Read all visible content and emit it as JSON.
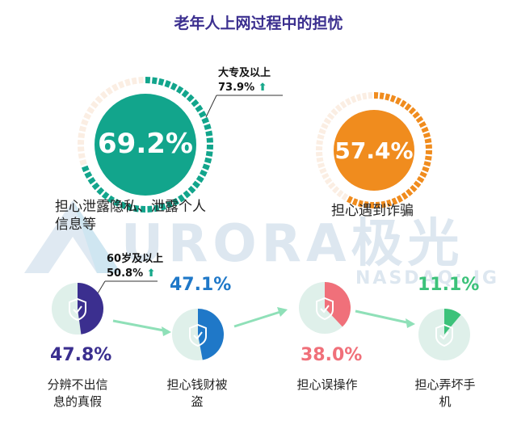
{
  "title": "老年人上网过程中的担忧",
  "watermark": {
    "brand": "URORA极光",
    "exchange": "NASDAQ: JG"
  },
  "colors": {
    "teal": "#12a58c",
    "teal_light": "#e8f6f3",
    "orange": "#f08c1e",
    "orange_light": "#fdefdc",
    "purple": "#3b2f8f",
    "blue": "#1f78c8",
    "red": "#f0707a",
    "green": "#3cc27a",
    "pale": "#fbeee3",
    "circle_bg": "#dff0ea",
    "arrow": "#8fe0b8"
  },
  "chart_data": [
    {
      "type": "pie",
      "title": "",
      "segments": [
        {
          "label": "担心泄露隐私、泄露个人信息等",
          "value": 69.2,
          "value_text": "69.2%"
        },
        {
          "label": "担心遇到诈骗",
          "value": 57.4,
          "value_text": "57.4%"
        }
      ],
      "callout": {
        "group": "大专及以上",
        "value": 73.9,
        "value_text": "73.9%",
        "icon": "up-arrow-icon"
      }
    },
    {
      "type": "pie",
      "title": "",
      "segments": [
        {
          "label": "分辨不出信息的真假",
          "value": 47.8,
          "value_text": "47.8%",
          "color": "#3b2f8f"
        },
        {
          "label": "担心钱财被盗",
          "value": 47.1,
          "value_text": "47.1%",
          "color": "#1f78c8"
        },
        {
          "label": "担心误操作",
          "value": 38.0,
          "value_text": "38.0%",
          "color": "#f0707a"
        },
        {
          "label": "担心弄坏手机",
          "value": 11.1,
          "value_text": "11.1%",
          "color": "#3cc27a"
        }
      ],
      "callout": {
        "group": "60岁及以上",
        "value": 50.8,
        "value_text": "50.8%",
        "icon": "up-arrow-icon"
      }
    }
  ],
  "labels": {
    "privacy_line1": "担心泄露隐私、泄露个人",
    "privacy_line2": "信息等",
    "fraud": "担心遇到诈骗",
    "fake_line1": "分辨不出信",
    "fake_line2": "息的真假",
    "money_line1": "担心钱财被",
    "money_line2": "盗",
    "misop": "担心误操作",
    "phone_line1": "担心弄坏手",
    "phone_line2": "机"
  },
  "callout_text": {
    "c1_group": "大专及以上",
    "c1_value": "73.9%",
    "c2_group": "60岁及以上",
    "c2_value": "50.8%",
    "up_arrow": "⬆"
  },
  "icons": [
    "shield-check-icon",
    "up-arrow-icon",
    "right-arrow-icon"
  ]
}
